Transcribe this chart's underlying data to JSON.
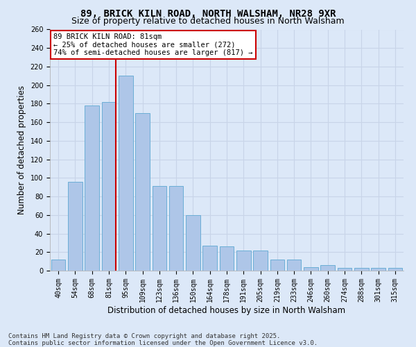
{
  "title_line1": "89, BRICK KILN ROAD, NORTH WALSHAM, NR28 9XR",
  "title_line2": "Size of property relative to detached houses in North Walsham",
  "xlabel": "Distribution of detached houses by size in North Walsham",
  "ylabel": "Number of detached properties",
  "categories": [
    "40sqm",
    "54sqm",
    "68sqm",
    "81sqm",
    "95sqm",
    "109sqm",
    "123sqm",
    "136sqm",
    "150sqm",
    "164sqm",
    "178sqm",
    "191sqm",
    "205sqm",
    "219sqm",
    "233sqm",
    "246sqm",
    "260sqm",
    "274sqm",
    "288sqm",
    "301sqm",
    "315sqm"
  ],
  "values": [
    12,
    96,
    178,
    182,
    210,
    170,
    91,
    91,
    60,
    27,
    26,
    22,
    22,
    12,
    12,
    4,
    6,
    3,
    3,
    3,
    3
  ],
  "bar_color": "#aec6e8",
  "bar_edge_color": "#6baed6",
  "subject_line_idx": 3,
  "annotation_text": "89 BRICK KILN ROAD: 81sqm\n← 25% of detached houses are smaller (272)\n74% of semi-detached houses are larger (817) →",
  "annotation_box_color": "#ffffff",
  "annotation_box_edge_color": "#cc0000",
  "subject_line_color": "#cc0000",
  "ylim": [
    0,
    260
  ],
  "yticks": [
    0,
    20,
    40,
    60,
    80,
    100,
    120,
    140,
    160,
    180,
    200,
    220,
    240,
    260
  ],
  "grid_color": "#c8d4e8",
  "background_color": "#dce8f8",
  "footer_line1": "Contains HM Land Registry data © Crown copyright and database right 2025.",
  "footer_line2": "Contains public sector information licensed under the Open Government Licence v3.0.",
  "title_fontsize": 10,
  "subtitle_fontsize": 9,
  "axis_label_fontsize": 8.5,
  "tick_fontsize": 7,
  "annotation_fontsize": 7.5,
  "footer_fontsize": 6.5
}
